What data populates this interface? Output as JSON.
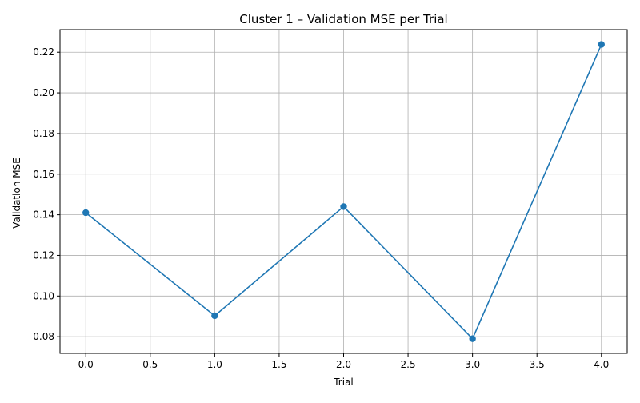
{
  "colors": {
    "series": "#1f77b4",
    "grid": "#b0b0b0",
    "axis": "#000000",
    "background": "#ffffff"
  },
  "chart_data": {
    "type": "line",
    "title": "Cluster 1 – Validation MSE per Trial",
    "xlabel": "Trial",
    "ylabel": "Validation MSE",
    "grid": true,
    "marker": "circle",
    "xlim": [
      -0.2,
      4.2
    ],
    "ylim": [
      0.0718,
      0.2311
    ],
    "x_ticks": [
      0.0,
      0.5,
      1.0,
      1.5,
      2.0,
      2.5,
      3.0,
      3.5,
      4.0
    ],
    "x_tick_labels": [
      "0.0",
      "0.5",
      "1.0",
      "1.5",
      "2.0",
      "2.5",
      "3.0",
      "3.5",
      "4.0"
    ],
    "y_ticks": [
      0.08,
      0.1,
      0.12,
      0.14,
      0.16,
      0.18,
      0.2,
      0.22
    ],
    "y_tick_labels": [
      "0.08",
      "0.10",
      "0.12",
      "0.14",
      "0.16",
      "0.18",
      "0.20",
      "0.22"
    ],
    "series": [
      {
        "x": [
          0,
          1,
          2,
          3,
          4
        ],
        "values": [
          0.141,
          0.0903,
          0.144,
          0.079,
          0.2238
        ]
      }
    ]
  }
}
